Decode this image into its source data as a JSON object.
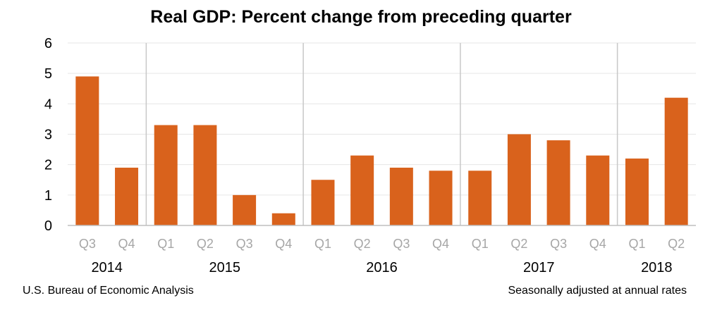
{
  "chart_data": {
    "type": "bar",
    "title": "Real GDP:  Percent change from preceding quarter",
    "categories": [
      "Q3",
      "Q4",
      "Q1",
      "Q2",
      "Q3",
      "Q4",
      "Q1",
      "Q2",
      "Q3",
      "Q4",
      "Q1",
      "Q2",
      "Q3",
      "Q4",
      "Q1",
      "Q2"
    ],
    "years": [
      {
        "label": "2014",
        "start": 0,
        "end": 1
      },
      {
        "label": "2015",
        "start": 2,
        "end": 5
      },
      {
        "label": "2016",
        "start": 6,
        "end": 9
      },
      {
        "label": "2017",
        "start": 10,
        "end": 13
      },
      {
        "label": "2018",
        "start": 14,
        "end": 15
      }
    ],
    "values": [
      4.9,
      1.9,
      3.3,
      3.3,
      1.0,
      0.4,
      1.5,
      2.3,
      1.9,
      1.8,
      1.8,
      3.0,
      2.8,
      2.3,
      2.2,
      4.2
    ],
    "yticks": [
      "0",
      "1",
      "2",
      "3",
      "4",
      "5",
      "6"
    ],
    "ylim": [
      0,
      6
    ],
    "grid": true,
    "bar_color": "#d9621c",
    "source": "U.S. Bureau of Economic Analysis",
    "note": "Seasonally adjusted at annual rates"
  }
}
